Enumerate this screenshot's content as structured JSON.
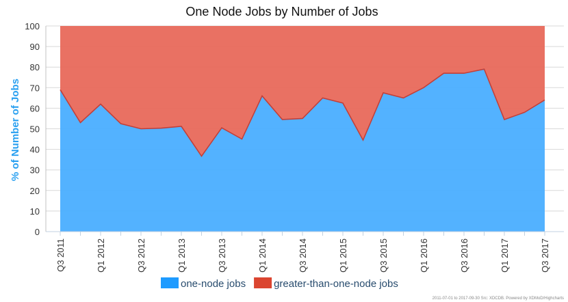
{
  "chart_data": {
    "type": "area",
    "stacking": "percent",
    "title": "One Node Jobs by Number of Jobs",
    "xlabel": "",
    "ylabel": "% of Number of Jobs",
    "ylim": [
      0,
      100
    ],
    "yticks": [
      0,
      10,
      20,
      30,
      40,
      50,
      60,
      70,
      80,
      90,
      100
    ],
    "categories": [
      "Q3 2011",
      "Q4 2011",
      "Q1 2012",
      "Q2 2012",
      "Q3 2012",
      "Q4 2012",
      "Q1 2013",
      "Q2 2013",
      "Q3 2013",
      "Q4 2013",
      "Q1 2014",
      "Q2 2014",
      "Q3 2014",
      "Q4 2014",
      "Q1 2015",
      "Q2 2015",
      "Q3 2015",
      "Q4 2015",
      "Q1 2016",
      "Q2 2016",
      "Q3 2016",
      "Q4 2016",
      "Q1 2017",
      "Q2 2017",
      "Q3 2017"
    ],
    "xtick_labels": [
      "Q3 2011",
      "",
      "Q1 2012",
      "",
      "Q3 2012",
      "",
      "Q1 2013",
      "",
      "Q3 2013",
      "",
      "Q1 2014",
      "",
      "Q3 2014",
      "",
      "Q1 2015",
      "",
      "Q3 2015",
      "",
      "Q1 2016",
      "",
      "Q3 2016",
      "",
      "Q1 2017",
      "",
      "Q3 2017"
    ],
    "series": [
      {
        "name": "one-node jobs",
        "color": "#4aaeff",
        "values": [
          69,
          53,
          62,
          52.5,
          50,
          50.3,
          51.2,
          36.7,
          50.5,
          45,
          66,
          54.5,
          55,
          65,
          62.5,
          44.5,
          67.5,
          65,
          70,
          77,
          77,
          79,
          54.5,
          58,
          64
        ]
      },
      {
        "name": "greater-than-one-node jobs",
        "color": "#e8695b",
        "values": [
          31,
          47,
          38,
          47.5,
          50,
          49.7,
          48.8,
          63.3,
          49.5,
          55,
          34,
          45.5,
          45,
          35,
          37.5,
          55.5,
          32.5,
          35,
          30,
          23,
          23,
          21,
          45.5,
          42,
          36
        ]
      }
    ],
    "legend": {
      "position": "bottom-center"
    },
    "grid": true,
    "credits": "2011-07-01 to 2017-09-30 Src: XDCDB. Powered by XDMoD/Highcharts"
  }
}
